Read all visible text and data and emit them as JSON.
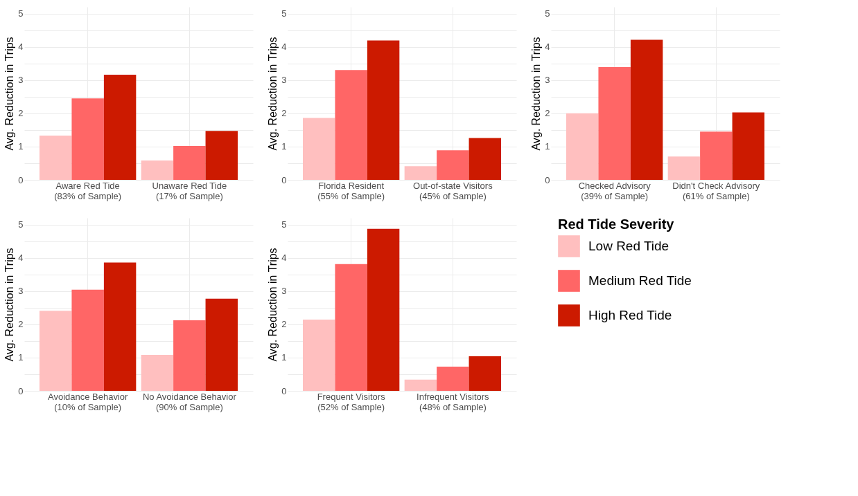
{
  "chart_data": [
    {
      "type": "bar",
      "categories": [
        "Aware Red Tide\n(83% of Sample)",
        "Unaware Red Tide\n(17% of Sample)"
      ],
      "ylabel": "Avg. Reduction in Trips",
      "ylim": [
        0,
        5.2
      ],
      "yticks": [
        0,
        {
          "value": 0.5,
          "label": null
        },
        1,
        {
          "value": 1.5,
          "label": null
        },
        2,
        {
          "value": 2.5,
          "label": null
        },
        3,
        {
          "value": 3.5,
          "label": null
        },
        4,
        {
          "value": 4.5,
          "label": null
        },
        5
      ],
      "grid": true,
      "legend": "bottom right",
      "legend_title": "Red Tide Severity",
      "series": [
        {
          "name": "Low Red Tide",
          "color": "#ffbfbf",
          "values": [
            1.33,
            0.58
          ]
        },
        {
          "name": "Medium Red Tide",
          "color": "#ff6666",
          "values": [
            2.45,
            1.02
          ]
        },
        {
          "name": "High Red Tide",
          "color": "#cc1a00",
          "values": [
            3.16,
            1.47
          ]
        }
      ]
    },
    {
      "type": "bar",
      "categories": [
        "Florida Resident\n(55% of Sample)",
        "Out-of-state Visitors\n(45% of Sample)"
      ],
      "ylabel": "Avg. Reduction in Trips",
      "ylim": [
        0,
        5.2
      ],
      "yticks": [
        0,
        {
          "value": 0.5,
          "label": null
        },
        1,
        {
          "value": 1.5,
          "label": null
        },
        2,
        {
          "value": 2.5,
          "label": null
        },
        3,
        {
          "value": 3.5,
          "label": null
        },
        4,
        {
          "value": 4.5,
          "label": null
        },
        5
      ],
      "grid": true,
      "series": [
        {
          "color": "#ffbfbf",
          "values": [
            1.86,
            0.41
          ]
        },
        {
          "color": "#ff6666",
          "values": [
            3.3,
            0.89
          ]
        },
        {
          "color": "#cc1a00",
          "values": [
            4.19,
            1.26
          ]
        }
      ]
    },
    {
      "type": "bar",
      "categories": [
        "Checked Advisory\n(39% of Sample)",
        "Didn't Check Advisory\n(61% of Sample)"
      ],
      "ylabel": "Avg. Reduction in Trips",
      "ylim": [
        0,
        5.2
      ],
      "yticks": [
        0,
        {
          "value": 0.5,
          "label": null
        },
        1,
        {
          "value": 1.5,
          "label": null
        },
        2,
        {
          "value": 2.5,
          "label": null
        },
        3,
        {
          "value": 3.5,
          "label": null
        },
        4,
        {
          "value": 4.5,
          "label": null
        },
        5
      ],
      "grid": true,
      "series": [
        {
          "color": "#ffbfbf",
          "values": [
            2.0,
            0.7
          ]
        },
        {
          "color": "#ff6666",
          "values": [
            3.39,
            1.45
          ]
        },
        {
          "color": "#cc1a00",
          "values": [
            4.21,
            2.03
          ]
        }
      ]
    },
    {
      "type": "bar",
      "categories": [
        "Avoidance Behavior\n(10% of Sample)",
        "No Avoidance Behavior\n(90% of Sample)"
      ],
      "ylabel": "Avg. Reduction in Trips",
      "ylim": [
        0,
        5.2
      ],
      "yticks": [
        0,
        {
          "value": 0.5,
          "label": null
        },
        1,
        {
          "value": 1.5,
          "label": null
        },
        2,
        {
          "value": 2.5,
          "label": null
        },
        3,
        {
          "value": 3.5,
          "label": null
        },
        4,
        {
          "value": 4.5,
          "label": null
        },
        5
      ],
      "grid": true,
      "series": [
        {
          "color": "#ffbfbf",
          "values": [
            2.41,
            1.08
          ]
        },
        {
          "color": "#ff6666",
          "values": [
            3.04,
            2.12
          ]
        },
        {
          "color": "#cc1a00",
          "values": [
            3.86,
            2.77
          ]
        }
      ]
    },
    {
      "type": "bar",
      "categories": [
        "Frequent Visitors\n(52% of Sample)",
        "Infrequent Visitors\n(48% of Sample)"
      ],
      "ylabel": "Avg. Reduction in Trips",
      "ylim": [
        0,
        5.2
      ],
      "yticks": [
        0,
        {
          "value": 0.5,
          "label": null
        },
        1,
        {
          "value": 1.5,
          "label": null
        },
        2,
        {
          "value": 2.5,
          "label": null
        },
        3,
        {
          "value": 3.5,
          "label": null
        },
        4,
        {
          "value": 4.5,
          "label": null
        },
        5
      ],
      "grid": true,
      "series": [
        {
          "color": "#ffbfbf",
          "values": [
            2.14,
            0.34
          ]
        },
        {
          "color": "#ff6666",
          "values": [
            3.81,
            0.73
          ]
        },
        {
          "color": "#cc1a00",
          "values": [
            4.87,
            1.04
          ]
        }
      ]
    }
  ]
}
